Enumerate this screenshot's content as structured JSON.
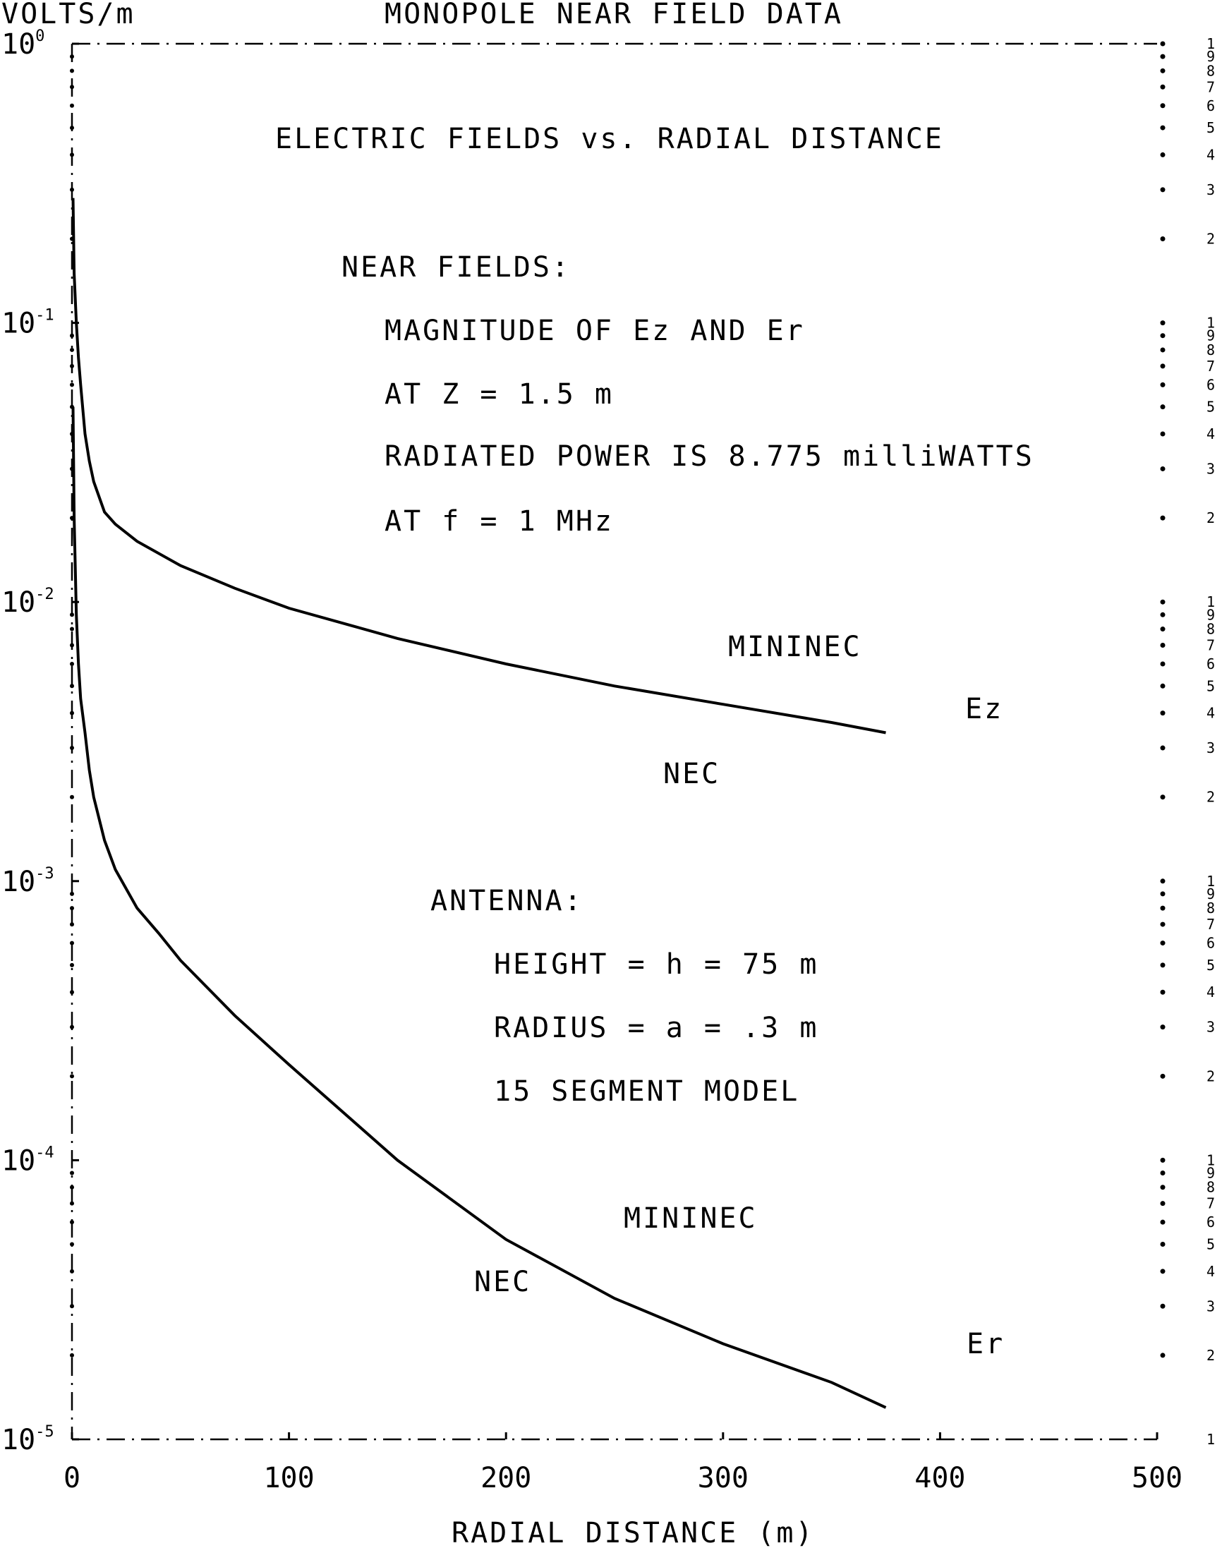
{
  "chart_data": {
    "type": "line",
    "title": "MONOPOLE NEAR FIELD DATA",
    "xlabel": "RADIAL DISTANCE (m)",
    "ylabel": "VOLTS/m",
    "xlim": [
      0,
      500
    ],
    "ylim": [
      1e-05,
      1
    ],
    "yscale": "log",
    "grid": false,
    "x_ticks": [
      "0",
      "100",
      "200",
      "300",
      "400",
      "500"
    ],
    "y_ticks": [
      {
        "base": "10",
        "exp": "0"
      },
      {
        "base": "10",
        "exp": "-1"
      },
      {
        "base": "10",
        "exp": "-2"
      },
      {
        "base": "10",
        "exp": "-3"
      },
      {
        "base": "10",
        "exp": "-4"
      },
      {
        "base": "10",
        "exp": "-5"
      }
    ],
    "right_minor_labels": [
      "1",
      "9",
      "8",
      "7",
      "6",
      "5",
      "4",
      "3",
      "2"
    ],
    "series": [
      {
        "name": "Ez",
        "x": [
          0.5,
          1,
          2,
          3,
          4,
          6,
          8,
          10,
          15,
          20,
          30,
          50,
          75,
          100,
          150,
          200,
          250,
          300,
          350,
          375
        ],
        "y": [
          0.28,
          0.15,
          0.1,
          0.075,
          0.06,
          0.04,
          0.032,
          0.027,
          0.021,
          0.019,
          0.0165,
          0.0135,
          0.0112,
          0.0095,
          0.0074,
          0.006,
          0.005,
          0.0043,
          0.0037,
          0.0034
        ]
      },
      {
        "name": "Er",
        "x": [
          0.5,
          1,
          2,
          3,
          4,
          6,
          8,
          10,
          15,
          20,
          30,
          40,
          50,
          75,
          100,
          150,
          200,
          250,
          300,
          350,
          375
        ],
        "y": [
          0.05,
          0.02,
          0.009,
          0.006,
          0.0045,
          0.0034,
          0.0025,
          0.002,
          0.0014,
          0.0011,
          0.0008,
          0.00065,
          0.00052,
          0.00033,
          0.00022,
          0.0001,
          5.2e-05,
          3.2e-05,
          2.2e-05,
          1.6e-05,
          1.3e-05
        ]
      }
    ],
    "annotations": {
      "subtitle": "ELECTRIC FIELDS vs. RADIAL DISTANCE",
      "near_fields_heading": "NEAR FIELDS:",
      "near_fields_lines": [
        "MAGNITUDE OF Ez AND Er",
        "AT Z = 1.5 m",
        "RADIATED POWER IS 8.775 milliWATTS",
        "AT f = 1 MHz"
      ],
      "antenna_heading": "ANTENNA:",
      "antenna_lines": [
        "HEIGHT = h = 75 m",
        "RADIUS = a = .3 m",
        "15 SEGMENT MODEL"
      ],
      "curve_labels": {
        "ez_mininec": "MININEC",
        "ez_nec": "NEC",
        "ez_name": "Ez",
        "er_mininec": "MININEC",
        "er_nec": "NEC",
        "er_name": "Er"
      }
    }
  }
}
